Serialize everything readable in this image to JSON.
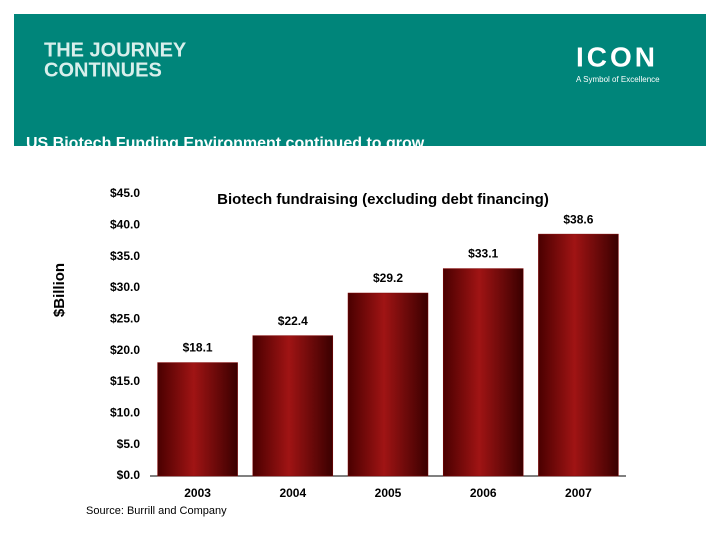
{
  "header": {
    "line1": "THE JOURNEY",
    "line2": "CONTINUES",
    "logo": "ICON",
    "tagline": "A Symbol of Excellence",
    "subtitle": "US Biotech Funding Environment continued to grow"
  },
  "chart_data": {
    "type": "bar",
    "title": "Biotech fundraising (excluding debt financing)",
    "y_label": "$Billion",
    "categories": [
      "2003",
      "2004",
      "2005",
      "2006",
      "2007"
    ],
    "values": [
      18.1,
      22.4,
      29.2,
      33.1,
      38.6
    ],
    "value_labels": [
      "$18.1",
      "$22.4",
      "$29.2",
      "$33.1",
      "$38.6"
    ],
    "color": "#800000",
    "ylim": [
      0,
      45
    ],
    "yticks": [
      {
        "value": 0,
        "label": "$0.0"
      },
      {
        "value": 5,
        "label": "$5.0"
      },
      {
        "value": 10,
        "label": "$10.0"
      },
      {
        "value": 15,
        "label": "$15.0"
      },
      {
        "value": 20,
        "label": "$20.0"
      },
      {
        "value": 25,
        "label": "$25.0"
      },
      {
        "value": 30,
        "label": "$30.0"
      },
      {
        "value": 35,
        "label": "$35.0"
      },
      {
        "value": 40,
        "label": "$40.0"
      },
      {
        "value": 45,
        "label": "$45.0"
      }
    ],
    "grid": false
  },
  "source": "Source: Burrill and Company"
}
